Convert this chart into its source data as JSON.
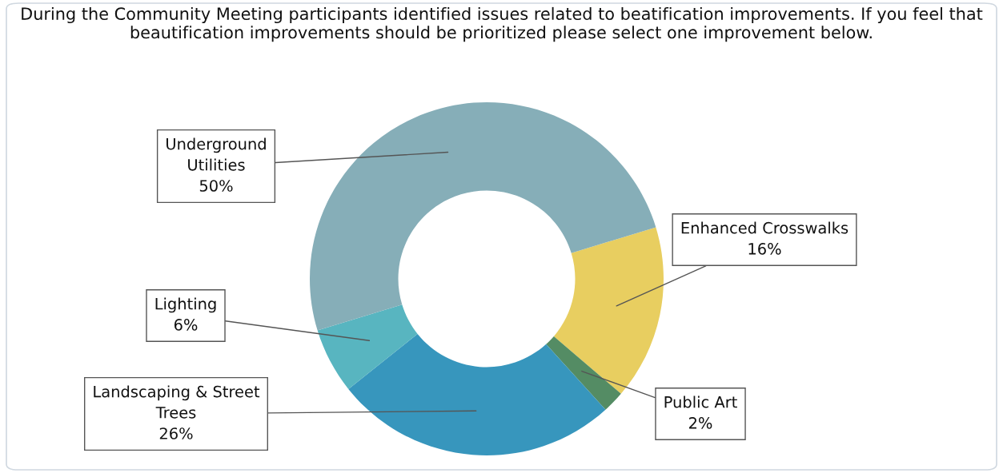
{
  "chart_data": {
    "type": "donut",
    "title": "During the Community Meeting participants identified issues related to beatification improvements. If you feel that beautification improvements should be prioritized please select one improvement below.",
    "categories": [
      "Enhanced Crosswalks",
      "Public Art",
      "Landscaping & Street Trees",
      "Lighting",
      "Underground Utilities"
    ],
    "values": [
      16,
      2,
      26,
      6,
      50
    ],
    "value_labels": [
      "16%",
      "2%",
      "26%",
      "6%",
      "50%"
    ],
    "colors": [
      "#e8ce60",
      "#548c64",
      "#3796bd",
      "#58b5c0",
      "#86aeb8"
    ]
  }
}
